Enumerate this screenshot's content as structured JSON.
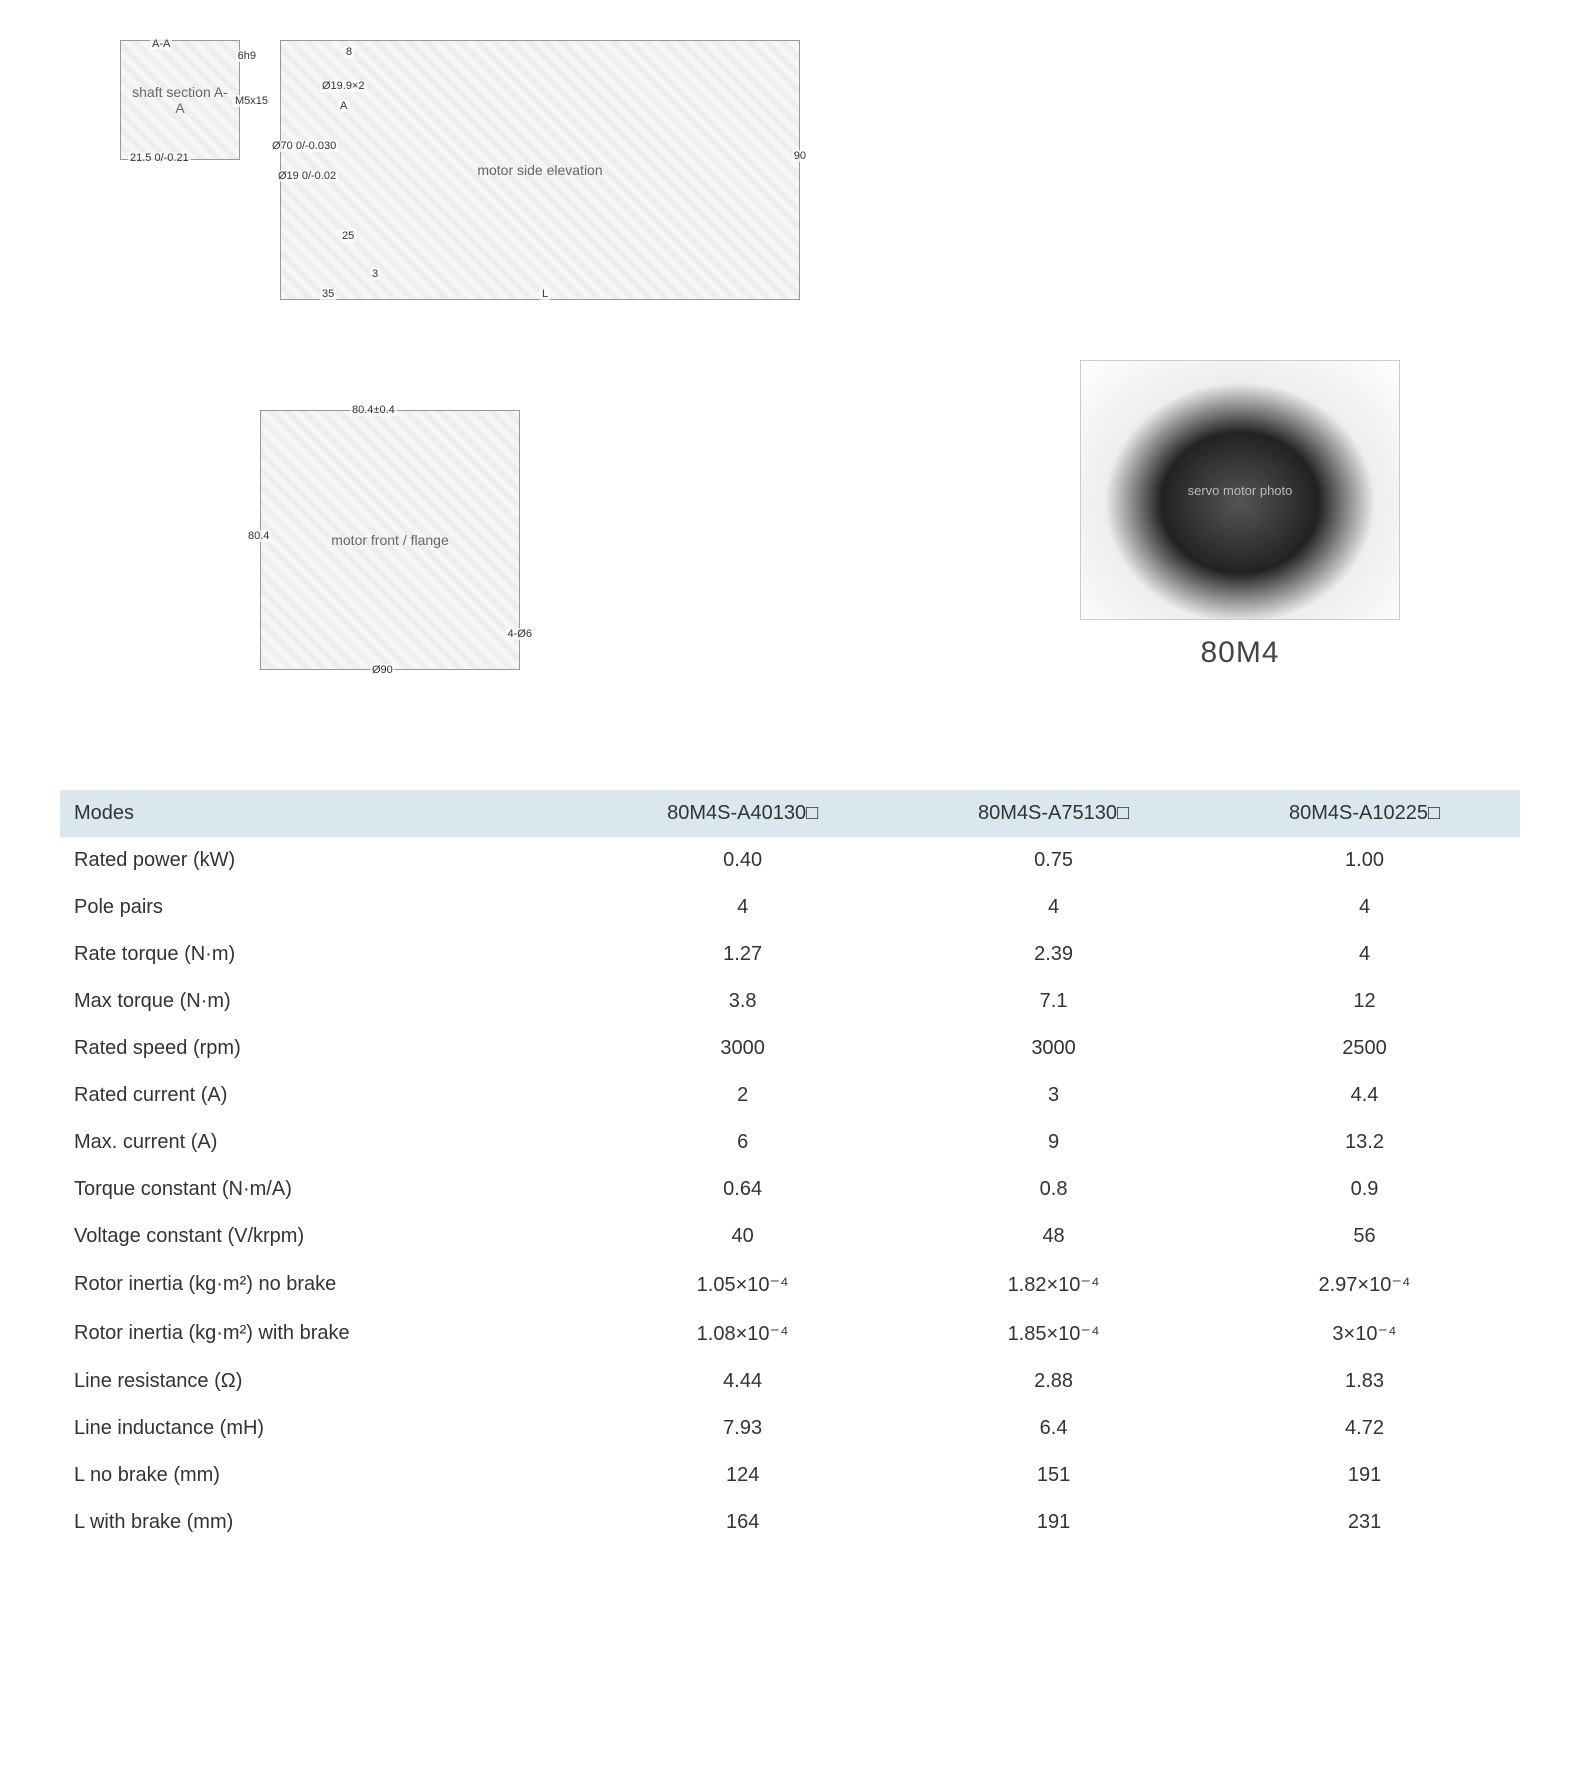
{
  "product_label": "80M4",
  "diagrams": {
    "shaft_section": {
      "labels": [
        "A-A",
        "6h9",
        "M5x15",
        "21.5 0/-0.21"
      ]
    },
    "side_view": {
      "labels": [
        "8",
        "Ø19.9×2",
        "A",
        "Ø70 0/-0.030",
        "Ø19 0/-0.02",
        "25",
        "3",
        "35",
        "L",
        "90"
      ]
    },
    "front_view": {
      "labels": [
        "80.4±0.4",
        "80.4",
        "4-Ø6",
        "Ø90"
      ]
    }
  },
  "table": {
    "header_label": "Modes",
    "columns": [
      "80M4S-A40130□",
      "80M4S-A75130□",
      "80M4S-A10225□"
    ],
    "rows": [
      {
        "label": "Rated power (kW)",
        "values": [
          "0.40",
          "0.75",
          "1.00"
        ]
      },
      {
        "label": "Pole pairs",
        "values": [
          "4",
          "4",
          "4"
        ]
      },
      {
        "label": "Rate torque (N·m)",
        "values": [
          "1.27",
          "2.39",
          "4"
        ]
      },
      {
        "label": "Max torque (N·m)",
        "values": [
          "3.8",
          "7.1",
          "12"
        ]
      },
      {
        "label": "Rated speed (rpm)",
        "values": [
          "3000",
          "3000",
          "2500"
        ]
      },
      {
        "label": "Rated current (A)",
        "values": [
          "2",
          "3",
          "4.4"
        ]
      },
      {
        "label": "Max. current (A)",
        "values": [
          "6",
          "9",
          "13.2"
        ]
      },
      {
        "label": "Torque constant (N·m/A)",
        "values": [
          "0.64",
          "0.8",
          "0.9"
        ]
      },
      {
        "label": "Voltage constant (V/krpm)",
        "values": [
          "40",
          "48",
          "56"
        ]
      },
      {
        "label": "Rotor inertia (kg·m²) no brake",
        "values": [
          "1.05×10⁻⁴",
          "1.82×10⁻⁴",
          "2.97×10⁻⁴"
        ]
      },
      {
        "label": "Rotor inertia (kg·m²) with brake",
        "values": [
          "1.08×10⁻⁴",
          "1.85×10⁻⁴",
          "3×10⁻⁴"
        ]
      },
      {
        "label": "Line resistance (Ω)",
        "values": [
          "4.44",
          "2.88",
          "1.83"
        ]
      },
      {
        "label": "Line inductance (mH)",
        "values": [
          "7.93",
          "6.4",
          "4.72"
        ]
      },
      {
        "label": "L no brake (mm)",
        "values": [
          "124",
          "151",
          "191"
        ]
      },
      {
        "label": "L with brake (mm)",
        "values": [
          "164",
          "191",
          "231"
        ]
      }
    ]
  },
  "colors": {
    "header_bg": "#dae7ef",
    "text": "#333333",
    "page_bg": "#ffffff"
  }
}
